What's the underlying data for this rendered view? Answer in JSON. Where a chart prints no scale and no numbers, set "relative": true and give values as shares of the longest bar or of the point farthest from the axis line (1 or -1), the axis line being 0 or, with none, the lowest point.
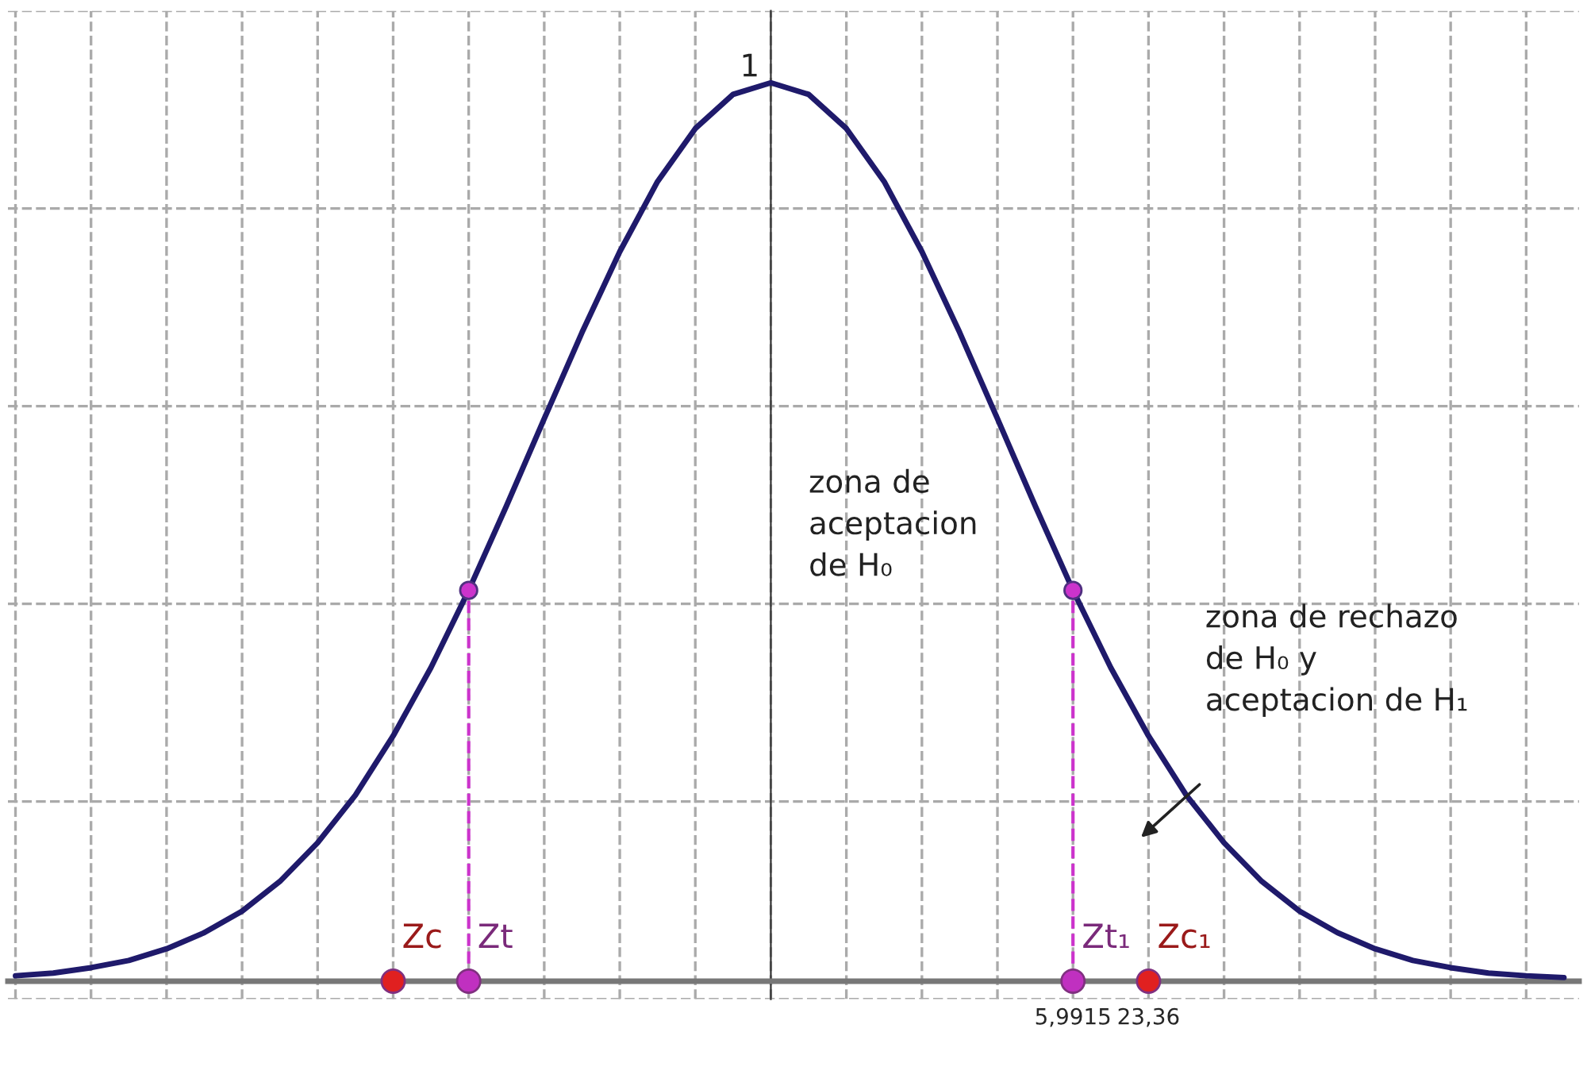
{
  "chart_data": {
    "type": "line",
    "relative": true,
    "grid": true,
    "categories": [
      null,
      null,
      null,
      null,
      null,
      null,
      null,
      null,
      null,
      null,
      null,
      null,
      null,
      null,
      null,
      null,
      null,
      null,
      null,
      null,
      null,
      null,
      null,
      null,
      null,
      null,
      null,
      null,
      "5,9915",
      null,
      "23,36",
      null,
      null,
      null,
      null,
      null,
      null,
      null,
      null,
      null,
      null,
      null
    ],
    "series": [
      {
        "color": "#1f1a6b",
        "values": [
          0.006,
          0.009,
          0.015,
          0.023,
          0.036,
          0.054,
          0.078,
          0.111,
          0.154,
          0.207,
          0.273,
          0.349,
          0.435,
          0.529,
          0.626,
          0.722,
          0.812,
          0.89,
          0.949,
          0.987,
          1,
          0.987,
          0.949,
          0.89,
          0.812,
          0.722,
          0.626,
          0.529,
          0.435,
          0.349,
          0.273,
          0.207,
          0.154,
          0.111,
          0.078,
          0.054,
          0.036,
          0.023,
          0.015,
          0.009,
          0.006,
          0.004
        ]
      },
      {
        "type": "lollipop",
        "color": "#cc33cc",
        "marker": "circle",
        "line_style": "dashed",
        "values": [
          null,
          null,
          null,
          null,
          null,
          null,
          null,
          null,
          null,
          null,
          null,
          null,
          0.435,
          null,
          null,
          null,
          null,
          null,
          null,
          null,
          null,
          null,
          null,
          null,
          null,
          null,
          null,
          null,
          0.435,
          null,
          null,
          null,
          null,
          null,
          null,
          null,
          null,
          null,
          null,
          null,
          null,
          null
        ]
      },
      {
        "type": "scatter",
        "name": "Zc",
        "color": "#e02020",
        "marker": "circle",
        "values": [
          null,
          null,
          null,
          null,
          null,
          null,
          null,
          null,
          null,
          null,
          0,
          null,
          null,
          null,
          null,
          null,
          null,
          null,
          null,
          null,
          null,
          null,
          null,
          null,
          null,
          null,
          null,
          null,
          null,
          null,
          null,
          null,
          null,
          null,
          null,
          null,
          null,
          null,
          null,
          null,
          null,
          null
        ]
      },
      {
        "type": "scatter",
        "name": "Zt",
        "color": "#c030c0",
        "marker": "circle",
        "values": [
          null,
          null,
          null,
          null,
          null,
          null,
          null,
          null,
          null,
          null,
          null,
          null,
          0,
          null,
          null,
          null,
          null,
          null,
          null,
          null,
          null,
          null,
          null,
          null,
          null,
          null,
          null,
          null,
          null,
          null,
          null,
          null,
          null,
          null,
          null,
          null,
          null,
          null,
          null,
          null,
          null,
          null
        ]
      },
      {
        "type": "scatter",
        "name": "Zt₁",
        "color": "#c030c0",
        "marker": "circle",
        "values": [
          null,
          null,
          null,
          null,
          null,
          null,
          null,
          null,
          null,
          null,
          null,
          null,
          null,
          null,
          null,
          null,
          null,
          null,
          null,
          null,
          null,
          null,
          null,
          null,
          null,
          null,
          null,
          null,
          0,
          null,
          null,
          null,
          null,
          null,
          null,
          null,
          null,
          null,
          null,
          null,
          null,
          null
        ]
      },
      {
        "type": "scatter",
        "name": "Zc₁",
        "color": "#e02020",
        "marker": "circle",
        "values": [
          null,
          null,
          null,
          null,
          null,
          null,
          null,
          null,
          null,
          null,
          null,
          null,
          null,
          null,
          null,
          null,
          null,
          null,
          null,
          null,
          null,
          null,
          null,
          null,
          null,
          null,
          null,
          null,
          null,
          null,
          0,
          null,
          null,
          null,
          null,
          null,
          null,
          null,
          null,
          null,
          null,
          null
        ]
      }
    ],
    "annotations": [
      "1",
      "zona de\naceptacion\nde H₀",
      "zona de rechazo\nde H₀ y\naceptacion de H₁"
    ]
  }
}
